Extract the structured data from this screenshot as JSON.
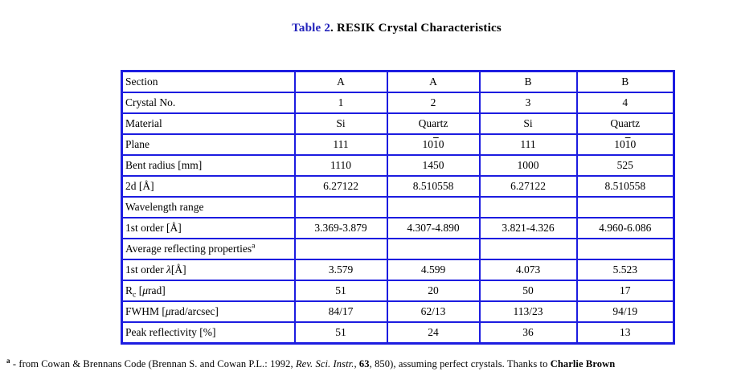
{
  "colors": {
    "table_border": "#1c1ce0",
    "title_accent": "#2222bb",
    "body_text": "#000000",
    "page_background": "#ffffff"
  },
  "title": {
    "segments": [
      {
        "t": "Table 2",
        "b": true,
        "accent": true
      },
      {
        "t": ". RESIK Crystal Characteristics",
        "b": true
      }
    ]
  },
  "table": {
    "rows": [
      {
        "label": "Section",
        "values": [
          "A",
          "A",
          "B",
          "B"
        ]
      },
      {
        "label": "Crystal No.",
        "values": [
          "1",
          "2",
          "3",
          "4"
        ]
      },
      {
        "label": "Material",
        "values": [
          "Si",
          "Quartz",
          "Si",
          "Quartz"
        ]
      },
      {
        "label": "Plane",
        "values": [
          "111",
          [
            "10",
            {
              "t": "1",
              "s": "over"
            },
            "0"
          ],
          "111",
          [
            "10",
            {
              "t": "1",
              "s": "over"
            },
            "0"
          ]
        ]
      },
      {
        "label": "Bent radius [mm]",
        "values": [
          "1110",
          "1450",
          "1000",
          "525"
        ]
      },
      {
        "label": "2d [Å]",
        "values": [
          "6.27122",
          "8.510558",
          "6.27122",
          "8.510558"
        ]
      },
      {
        "label": "Wavelength range",
        "values": [
          "",
          "",
          "",
          ""
        ]
      },
      {
        "label": "1st order [Å]",
        "values": [
          "3.369-3.879",
          "4.307-4.890",
          "3.821-4.326",
          "4.960-6.086"
        ]
      },
      {
        "label": [
          "Average reflecting properties",
          {
            "t": "a",
            "s": "sup"
          }
        ],
        "values": [
          "",
          "",
          "",
          ""
        ]
      },
      {
        "label": [
          "1st order ",
          {
            "t": "λ",
            "s": "i"
          },
          "[Å]"
        ],
        "values": [
          "3.579",
          "4.599",
          "4.073",
          "5.523"
        ]
      },
      {
        "label": [
          "R",
          {
            "t": "c",
            "s": "sub"
          },
          " [",
          {
            "t": "μ",
            "s": "i"
          },
          "rad]"
        ],
        "values": [
          "51",
          "20",
          "50",
          "17"
        ]
      },
      {
        "label": [
          "FWHM [",
          {
            "t": "μ",
            "s": "i"
          },
          "rad/arcsec]"
        ],
        "values": [
          "84/17",
          "62/13",
          "113/23",
          "94/19"
        ]
      },
      {
        "label": "Peak reflectivity [%]",
        "values": [
          "51",
          "24",
          "36",
          "13"
        ]
      }
    ]
  },
  "footnote": {
    "segments": [
      {
        "t": "a",
        "s": "sup",
        "b": true
      },
      {
        "t": " - from Cowan & Brennans Code (Brennan S. and Cowan P.L.: 1992, "
      },
      {
        "t": "Rev. Sci. Instr.",
        "s": "i"
      },
      {
        "t": ", "
      },
      {
        "t": "63",
        "b": true
      },
      {
        "t": ", 850), assuming perfect crystals. Thanks to "
      },
      {
        "t": "Charlie Brown",
        "b": true
      }
    ]
  }
}
